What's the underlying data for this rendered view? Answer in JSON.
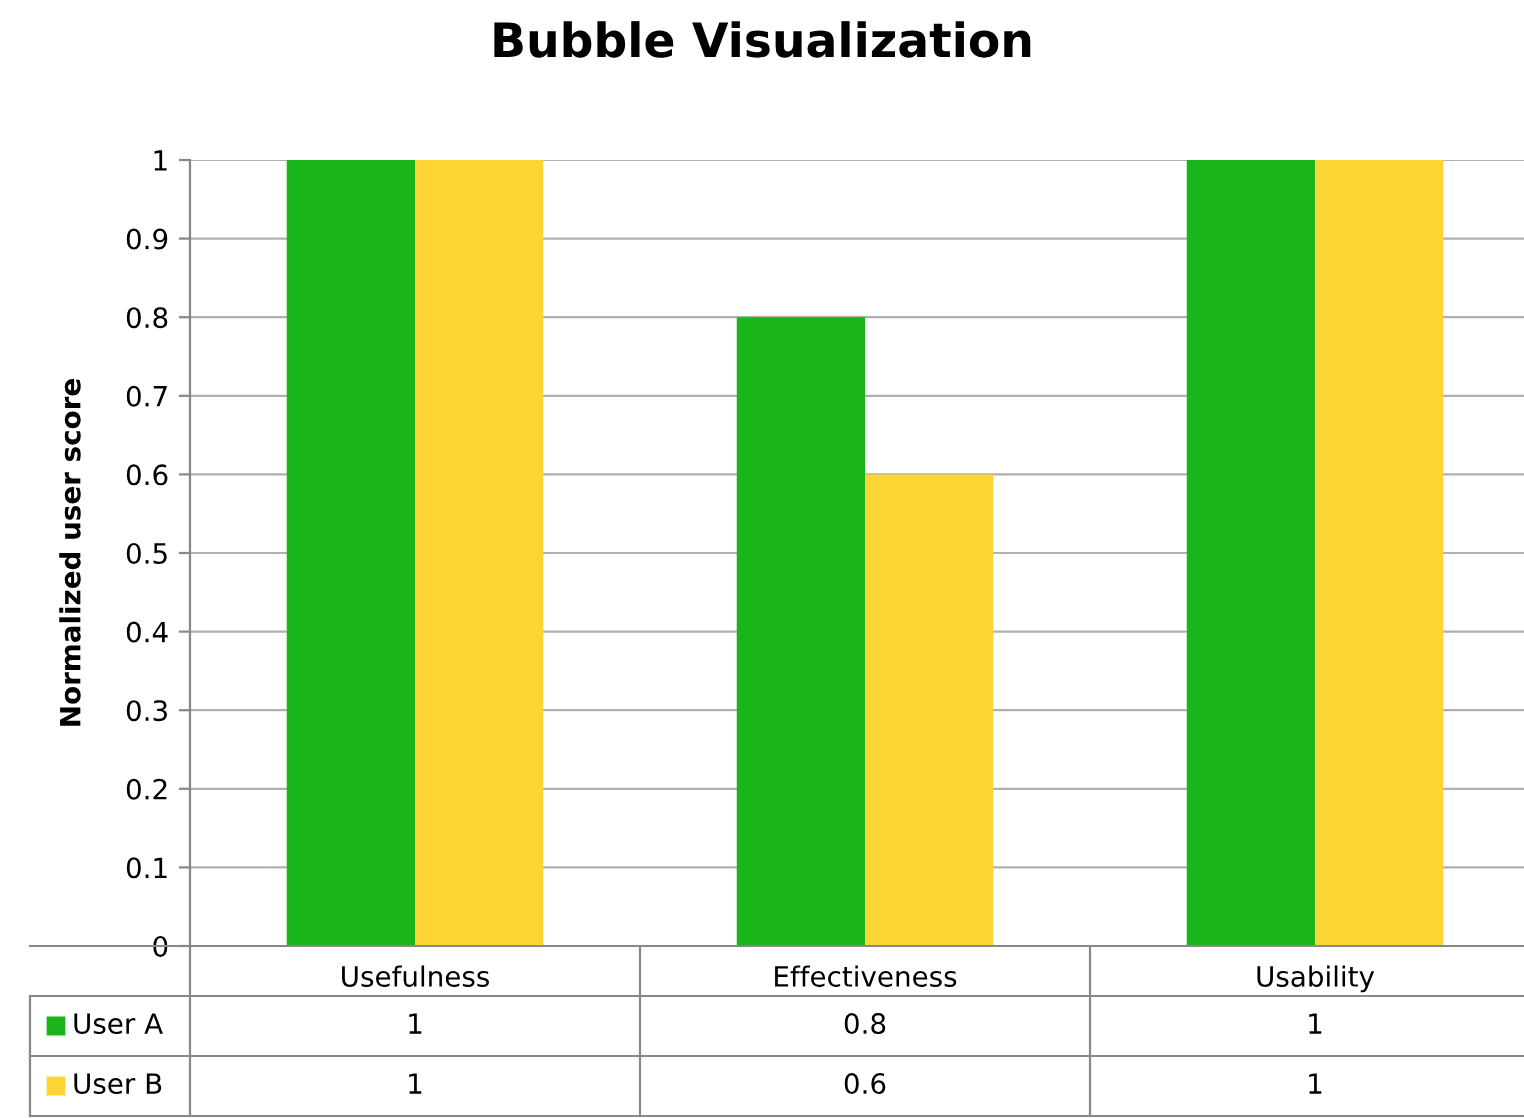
{
  "chart_data": {
    "type": "bar",
    "title": "Bubble Visualization",
    "ylabel": "Normalized user score",
    "categories": [
      "Usefulness",
      "Effectiveness",
      "Usability"
    ],
    "series": [
      {
        "name": "User A",
        "color": "#19b51a",
        "values": [
          1,
          0.8,
          1
        ]
      },
      {
        "name": "User B",
        "color": "#fcd535",
        "values": [
          1,
          0.6,
          1
        ]
      }
    ],
    "ylim": [
      0,
      1
    ],
    "yticks": [
      0,
      0.1,
      0.2,
      0.3,
      0.4,
      0.5,
      0.6,
      0.7,
      0.8,
      0.9,
      1
    ],
    "grid": "y",
    "legend": "bottom",
    "data_labels": true
  }
}
